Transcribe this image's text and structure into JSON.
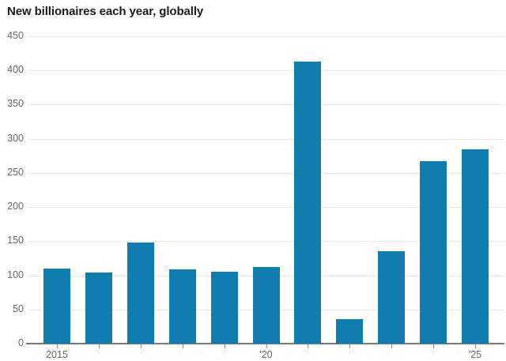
{
  "title": "New billionaires each year, globally",
  "colors": {
    "bar": "#0f7eae",
    "gridline": "#e9e9e9",
    "baseline": "#797979",
    "tick": "#8a8a8a",
    "axis_label": "#666666",
    "title": "#1a1a1a",
    "background": "#ffffff"
  },
  "chart_data": {
    "type": "bar",
    "title": "New billionaires each year, globally",
    "categories": [
      "2015",
      "2016",
      "2017",
      "2018",
      "2019",
      "2020",
      "2021",
      "2022",
      "2023",
      "2024",
      "2025"
    ],
    "values": [
      110,
      104,
      148,
      109,
      105,
      112,
      413,
      36,
      135,
      267,
      284
    ],
    "xlabel": "",
    "ylabel": "",
    "ylim": [
      0,
      450
    ],
    "ytick_interval": 50,
    "ytick_labels": [
      "0",
      "50",
      "100",
      "150",
      "200",
      "250",
      "300",
      "350",
      "400",
      "450"
    ],
    "x_axis_labels": [
      {
        "index": 0,
        "label": "2015"
      },
      {
        "index": 5,
        "label": "'20"
      },
      {
        "index": 10,
        "label": "'25"
      }
    ],
    "grid": "horizontal",
    "legend": "none"
  }
}
